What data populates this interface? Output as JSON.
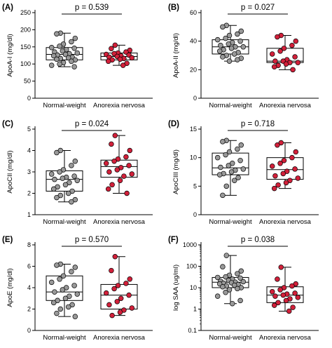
{
  "figure": {
    "panels": [
      {
        "id": "A",
        "label": "(A)",
        "ylabel": "ApoA-I (mg/dl)",
        "pvalue": "p = 0.539"
      },
      {
        "id": "B",
        "label": "(B)",
        "ylabel": "ApoA-II (mg/dl)",
        "pvalue": "p = 0.027"
      },
      {
        "id": "C",
        "label": "(C)",
        "ylabel": "ApoCII (mg/dl)",
        "pvalue": "p = 0.024"
      },
      {
        "id": "D",
        "label": "(D)",
        "ylabel": "ApoCIII (mg/dl)",
        "pvalue": "p = 0.718"
      },
      {
        "id": "E",
        "label": "(E)",
        "ylabel": "ApoE (mg/dl)",
        "pvalue": "p = 0.570"
      },
      {
        "id": "F",
        "label": "(F)",
        "ylabel": "log SAA (ug/ml)",
        "pvalue": "p = 0.038"
      }
    ]
  },
  "colors": {
    "normal_weight_points": "#999999",
    "anorexia_points": "#d2203a",
    "box_stroke": "#000000"
  },
  "chart_data": [
    {
      "panel": "A",
      "type": "box",
      "title": "",
      "ylabel": "ApoA-I (mg/dl)",
      "xlabel": "",
      "categories": [
        "Normal-weight",
        "Anorexia nervosa"
      ],
      "ylim": [
        0,
        250
      ],
      "yticks": [
        0,
        50,
        100,
        150,
        200,
        250
      ],
      "yscale": "linear",
      "pvalue": "p = 0.539",
      "groups": [
        {
          "name": "Normal-weight",
          "min": 92,
          "q1": 112,
          "median": 128,
          "q3": 148,
          "max": 190,
          "points": [
            190,
            188,
            175,
            165,
            158,
            152,
            148,
            146,
            142,
            138,
            135,
            132,
            130,
            128,
            126,
            124,
            120,
            118,
            116,
            114,
            112,
            108,
            104,
            100,
            96,
            92
          ]
        },
        {
          "name": "Anorexia nervosa",
          "min": 96,
          "q1": 112,
          "median": 122,
          "q3": 132,
          "max": 155,
          "points": [
            155,
            145,
            140,
            135,
            132,
            130,
            128,
            126,
            124,
            122,
            120,
            118,
            116,
            114,
            112,
            108,
            102,
            96
          ]
        }
      ]
    },
    {
      "panel": "B",
      "type": "box",
      "title": "",
      "ylabel": "ApoA-II (mg/dl)",
      "xlabel": "",
      "categories": [
        "Normal-weight",
        "Anorexia nervosa"
      ],
      "ylim": [
        0,
        60
      ],
      "yticks": [
        0,
        20,
        40,
        60
      ],
      "yscale": "linear",
      "pvalue": "p = 0.027",
      "groups": [
        {
          "name": "Normal-weight",
          "min": 26,
          "q1": 31,
          "median": 36,
          "q3": 41,
          "max": 51,
          "points": [
            51,
            50,
            47,
            45,
            44,
            42,
            41,
            40,
            39,
            38,
            37,
            36,
            36,
            35,
            34,
            33,
            32,
            31,
            30,
            29,
            28,
            27,
            26
          ]
        },
        {
          "name": "Anorexia nervosa",
          "min": 20,
          "q1": 25,
          "median": 26,
          "q3": 35,
          "max": 44,
          "points": [
            44,
            43,
            40,
            37,
            35,
            33,
            31,
            29,
            27,
            26,
            26,
            25,
            25,
            24,
            23,
            22,
            20
          ]
        }
      ]
    },
    {
      "panel": "C",
      "type": "box",
      "title": "",
      "ylabel": "ApoCII (mg/dl)",
      "xlabel": "",
      "categories": [
        "Normal-weight",
        "Anorexia nervosa"
      ],
      "ylim": [
        1,
        5
      ],
      "yticks": [
        1,
        2,
        3,
        4,
        5
      ],
      "yscale": "linear",
      "pvalue": "p = 0.024",
      "groups": [
        {
          "name": "Normal-weight",
          "min": 1.6,
          "q1": 2.1,
          "median": 2.65,
          "q3": 3.05,
          "max": 4.0,
          "points": [
            4.0,
            3.9,
            3.5,
            3.3,
            3.1,
            3.0,
            2.9,
            2.8,
            2.75,
            2.7,
            2.65,
            2.6,
            2.5,
            2.4,
            2.3,
            2.2,
            2.1,
            2.0,
            1.9,
            1.8,
            1.7,
            1.6
          ]
        },
        {
          "name": "Anorexia nervosa",
          "min": 2.0,
          "q1": 2.75,
          "median": 3.25,
          "q3": 3.55,
          "max": 4.7,
          "points": [
            4.7,
            4.3,
            4.0,
            3.7,
            3.6,
            3.5,
            3.4,
            3.3,
            3.2,
            3.1,
            3.0,
            2.9,
            2.8,
            2.6,
            2.4,
            2.2,
            2.0
          ]
        }
      ]
    },
    {
      "panel": "D",
      "type": "box",
      "title": "",
      "ylabel": "ApoCIII (mg/dl)",
      "xlabel": "",
      "categories": [
        "Normal-weight",
        "Anorexia nervosa"
      ],
      "ylim": [
        0,
        15
      ],
      "yticks": [
        0,
        5,
        10,
        15
      ],
      "yscale": "linear",
      "pvalue": "p = 0.718",
      "groups": [
        {
          "name": "Normal-weight",
          "min": 3.4,
          "q1": 7.0,
          "median": 8.2,
          "q3": 10.8,
          "max": 13.0,
          "points": [
            13.0,
            12.8,
            12.2,
            11.5,
            11.0,
            10.5,
            10.0,
            9.5,
            9.0,
            8.6,
            8.3,
            8.0,
            7.8,
            7.5,
            7.2,
            7.0,
            6.5,
            6.0,
            5.0,
            3.4
          ]
        },
        {
          "name": "Anorexia nervosa",
          "min": 4.6,
          "q1": 6.2,
          "median": 7.9,
          "q3": 10.0,
          "max": 12.6,
          "points": [
            12.6,
            12.2,
            11.0,
            10.0,
            9.5,
            9.0,
            8.5,
            8.0,
            7.6,
            7.2,
            6.8,
            6.4,
            6.0,
            5.6,
            5.2,
            4.6
          ]
        }
      ]
    },
    {
      "panel": "E",
      "type": "box",
      "title": "",
      "ylabel": "ApoE (mg/dl)",
      "xlabel": "",
      "categories": [
        "Normal-weight",
        "Anorexia nervosa"
      ],
      "ylim": [
        0,
        8
      ],
      "yticks": [
        0,
        2,
        4,
        6,
        8
      ],
      "yscale": "linear",
      "pvalue": "p = 0.570",
      "groups": [
        {
          "name": "Normal-weight",
          "min": 1.3,
          "q1": 2.8,
          "median": 3.6,
          "q3": 5.1,
          "max": 6.2,
          "points": [
            6.2,
            6.1,
            5.9,
            5.5,
            5.1,
            4.8,
            4.5,
            4.2,
            4.0,
            3.8,
            3.6,
            3.4,
            3.2,
            3.0,
            2.8,
            2.6,
            2.4,
            2.2,
            2.0,
            1.6,
            1.3
          ]
        },
        {
          "name": "Anorexia nervosa",
          "min": 1.4,
          "q1": 2.0,
          "median": 3.3,
          "q3": 4.3,
          "max": 6.9,
          "points": [
            6.9,
            5.6,
            4.8,
            4.4,
            4.2,
            3.9,
            3.5,
            3.3,
            3.0,
            2.7,
            2.4,
            2.1,
            1.9,
            1.7,
            1.4
          ]
        }
      ]
    },
    {
      "panel": "F",
      "type": "box",
      "title": "",
      "ylabel": "log SAA (ug/ml)",
      "xlabel": "",
      "categories": [
        "Normal-weight",
        "Anorexia nervosa"
      ],
      "ylim": [
        0.1,
        1000
      ],
      "yticks": [
        0.1,
        1,
        10,
        100,
        1000
      ],
      "ytick_labels": [
        "0.1",
        "1",
        "10",
        "100",
        "1000"
      ],
      "yscale": "log",
      "pvalue": "p = 0.038",
      "groups": [
        {
          "name": "Normal-weight",
          "min": 1.8,
          "q1": 10,
          "median": 18,
          "q3": 30,
          "max": 320,
          "points": [
            320,
            95,
            60,
            45,
            38,
            32,
            30,
            28,
            25,
            22,
            20,
            19,
            18,
            17,
            16,
            15,
            14,
            13,
            12,
            11,
            10,
            9,
            8,
            6,
            4,
            2.5,
            1.8
          ]
        },
        {
          "name": "Anorexia nervosa",
          "min": 0.8,
          "q1": 2.0,
          "median": 4.5,
          "q3": 11,
          "max": 90,
          "points": [
            90,
            25,
            15,
            12,
            10,
            8,
            6.5,
            5.5,
            5,
            4.5,
            4,
            3.5,
            3,
            2.5,
            2,
            1.5,
            1.2,
            0.8
          ]
        }
      ]
    }
  ]
}
